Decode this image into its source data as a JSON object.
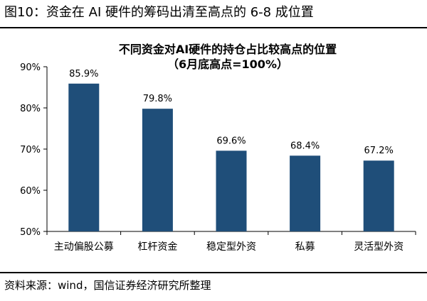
{
  "figure": {
    "title": "图10：资金在 AI 硬件的筹码出清至高点的 6-8 成位置",
    "source": "资料来源：wind，国信证券经济研究所整理"
  },
  "chart_data": {
    "type": "bar",
    "title": "不同资金对AI硬件的持仓占比较高点的位置",
    "subtitle": "（6月底高点=100%）",
    "categories": [
      "主动偏股公募",
      "杠杆资金",
      "稳定型外资",
      "私募",
      "灵活型外资"
    ],
    "values": [
      85.9,
      79.8,
      69.6,
      68.4,
      67.2
    ],
    "data_labels": [
      "85.9%",
      "79.8%",
      "69.6%",
      "68.4%",
      "67.2%"
    ],
    "yticks": [
      50,
      60,
      70,
      80,
      90
    ],
    "ytick_labels": [
      "50%",
      "60%",
      "70%",
      "80%",
      "90%"
    ],
    "ylim": [
      50,
      90
    ],
    "xlabel": "",
    "ylabel": "",
    "grid": false,
    "bar_color": "#1F4E79"
  }
}
